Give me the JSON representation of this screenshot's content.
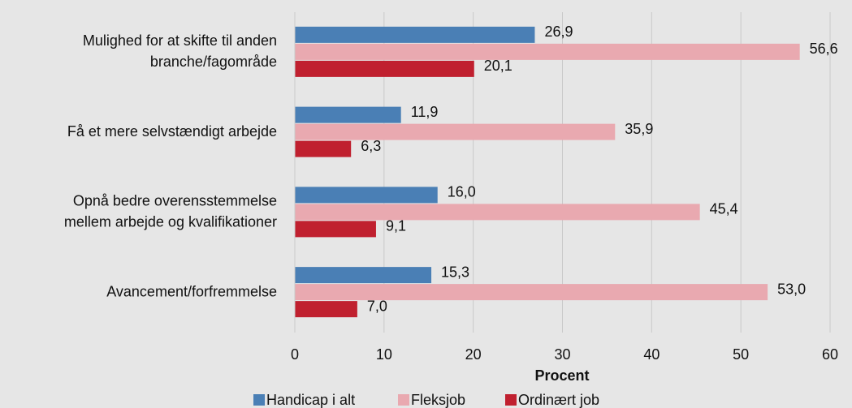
{
  "chart_data": {
    "type": "hbar",
    "categories": [
      [
        "Mulighed for at skifte til anden",
        "branche/fagområde"
      ],
      [
        "Få et mere selvstændigt arbejde"
      ],
      [
        "Opnå bedre overensstemmelse",
        "mellem arbejde og kvalifikationer"
      ],
      [
        "Avancement/forfremmelse"
      ]
    ],
    "series": [
      {
        "name": "Handicap i alt",
        "color": "#4a7fb5",
        "values": [
          26.9,
          11.9,
          16.0,
          15.3
        ],
        "value_labels": [
          "26,9",
          "11,9",
          "16,0",
          "15,3"
        ]
      },
      {
        "name": "Fleksjob",
        "color": "#e9a9b0",
        "values": [
          56.6,
          35.9,
          45.4,
          53.0
        ],
        "value_labels": [
          "56,6",
          "35,9",
          "45,4",
          "53,0"
        ]
      },
      {
        "name": "Ordinært job",
        "color": "#c0202f",
        "values": [
          20.1,
          6.3,
          9.1,
          7.0
        ],
        "value_labels": [
          "20,1",
          "6,3",
          "9,1",
          "7,0"
        ]
      }
    ],
    "xlabel": "Procent",
    "xlim": [
      0,
      60
    ],
    "xticks": [
      0,
      10,
      20,
      30,
      40,
      50,
      60
    ],
    "grid": true,
    "legend": "bottom"
  }
}
